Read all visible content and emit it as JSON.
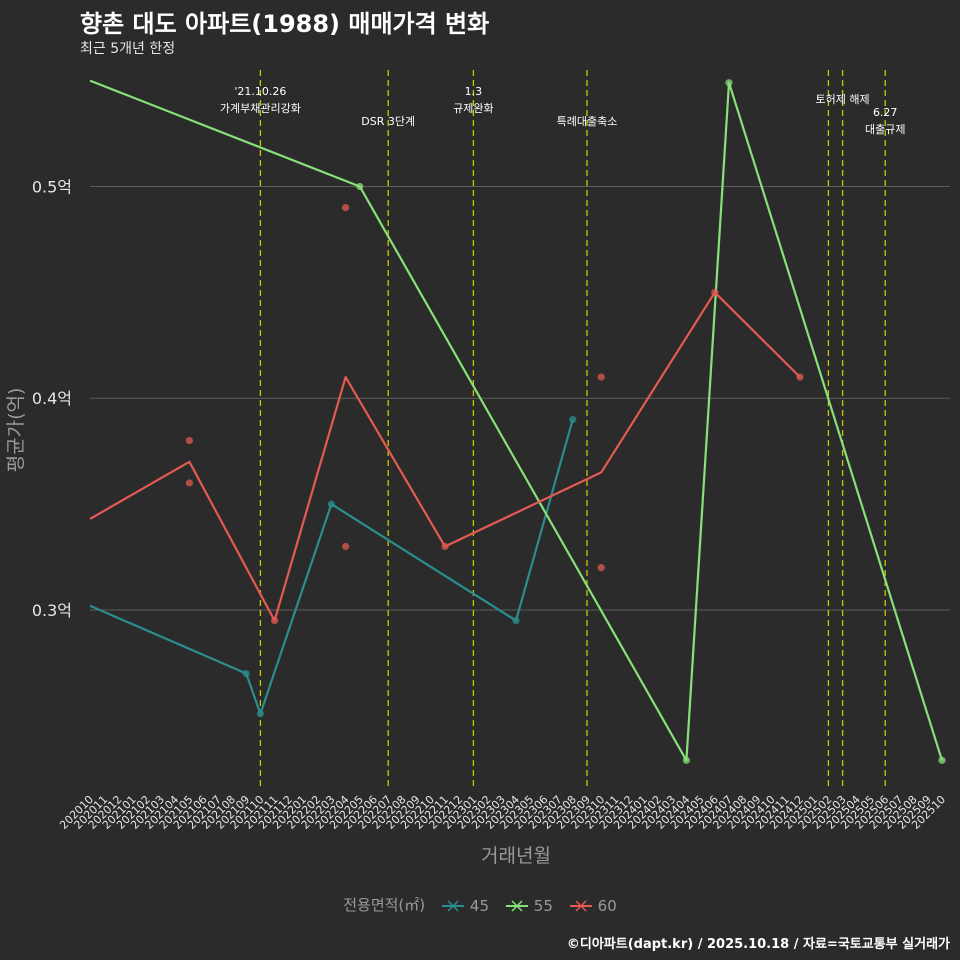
{
  "title": "향촌 대도 아파트(1988) 매매가격 변화",
  "subtitle": "최근 5개년 한정",
  "footer": "©디아파트(dapt.kr) / 2025.10.18 / 자료=국토교통부 실거래가",
  "chart_data": {
    "type": "line",
    "title": "향촌 대도 아파트(1988) 매매가격 변화",
    "xlabel": "거래년월",
    "ylabel": "평균가(억)",
    "legend_title": "전용면적(㎡)",
    "legend_position": "bottom",
    "categories": [
      "202010",
      "202011",
      "202012",
      "202101",
      "202102",
      "202103",
      "202104",
      "202105",
      "202106",
      "202107",
      "202108",
      "202109",
      "202110",
      "202111",
      "202112",
      "202201",
      "202202",
      "202203",
      "202204",
      "202205",
      "202206",
      "202207",
      "202208",
      "202209",
      "202210",
      "202211",
      "202212",
      "202301",
      "202302",
      "202303",
      "202304",
      "202305",
      "202306",
      "202307",
      "202308",
      "202309",
      "202310",
      "202311",
      "202312",
      "202401",
      "202402",
      "202403",
      "202404",
      "202405",
      "202406",
      "202407",
      "202408",
      "202409",
      "202410",
      "202411",
      "202412",
      "202501",
      "202502",
      "202503",
      "202504",
      "202505",
      "202506",
      "202507",
      "202508",
      "202509",
      "202510"
    ],
    "y_ticks": [
      {
        "value": 0.3,
        "label": "0.3억"
      },
      {
        "value": 0.4,
        "label": "0.4억"
      },
      {
        "value": 0.5,
        "label": "0.5억"
      }
    ],
    "ylim": [
      0.215,
      0.555
    ],
    "series": [
      {
        "name": "45",
        "color": "#2a8e8e",
        "line": [
          [
            "202010",
            0.302
          ],
          [
            "202109",
            0.27
          ],
          [
            "202110",
            0.251
          ],
          [
            "202203",
            0.35
          ],
          [
            "202304",
            0.295
          ],
          [
            "202308",
            0.39
          ]
        ],
        "points": [
          [
            "202109",
            0.27
          ],
          [
            "202110",
            0.251
          ],
          [
            "202203",
            0.35
          ],
          [
            "202304",
            0.295
          ],
          [
            "202308",
            0.39
          ]
        ]
      },
      {
        "name": "55",
        "color": "#88e07a",
        "line": [
          [
            "202010",
            0.55
          ],
          [
            "202205",
            0.5
          ],
          [
            "202404",
            0.229
          ],
          [
            "202407",
            0.549
          ],
          [
            "202510",
            0.229
          ]
        ],
        "points": [
          [
            "202205",
            0.5
          ],
          [
            "202404",
            0.229
          ],
          [
            "202407",
            0.549
          ],
          [
            "202510",
            0.229
          ]
        ]
      },
      {
        "name": "60",
        "color": "#e35a52",
        "line": [
          [
            "202010",
            0.343
          ],
          [
            "202105",
            0.37
          ],
          [
            "202111",
            0.295
          ],
          [
            "202204",
            0.41
          ],
          [
            "202211",
            0.33
          ],
          [
            "202310",
            0.365
          ],
          [
            "202406",
            0.45
          ],
          [
            "202412",
            0.41
          ]
        ],
        "points": [
          [
            "202105",
            0.38
          ],
          [
            "202105",
            0.36
          ],
          [
            "202111",
            0.295
          ],
          [
            "202204",
            0.49
          ],
          [
            "202204",
            0.33
          ],
          [
            "202211",
            0.33
          ],
          [
            "202310",
            0.41
          ],
          [
            "202310",
            0.32
          ],
          [
            "202406",
            0.45
          ],
          [
            "202412",
            0.41
          ]
        ]
      }
    ],
    "events": [
      {
        "month": "202110",
        "lines": [
          "'21.10.26",
          "가계부채관리강화"
        ],
        "level": 1
      },
      {
        "month": "202207",
        "lines": [
          "DSR 3단계"
        ],
        "level": 2
      },
      {
        "month": "202301",
        "lines": [
          "1.3",
          "규제완화"
        ],
        "level": 1
      },
      {
        "month": "202309",
        "lines": [
          "특례대출축소"
        ],
        "level": 2
      },
      {
        "month": "202502",
        "lines": [],
        "level": 0
      },
      {
        "month": "202503",
        "lines": [
          "토허제 해제"
        ],
        "level": 0
      },
      {
        "month": "202506",
        "lines": [
          "6.27",
          "대출규제"
        ],
        "level": 3
      }
    ]
  }
}
